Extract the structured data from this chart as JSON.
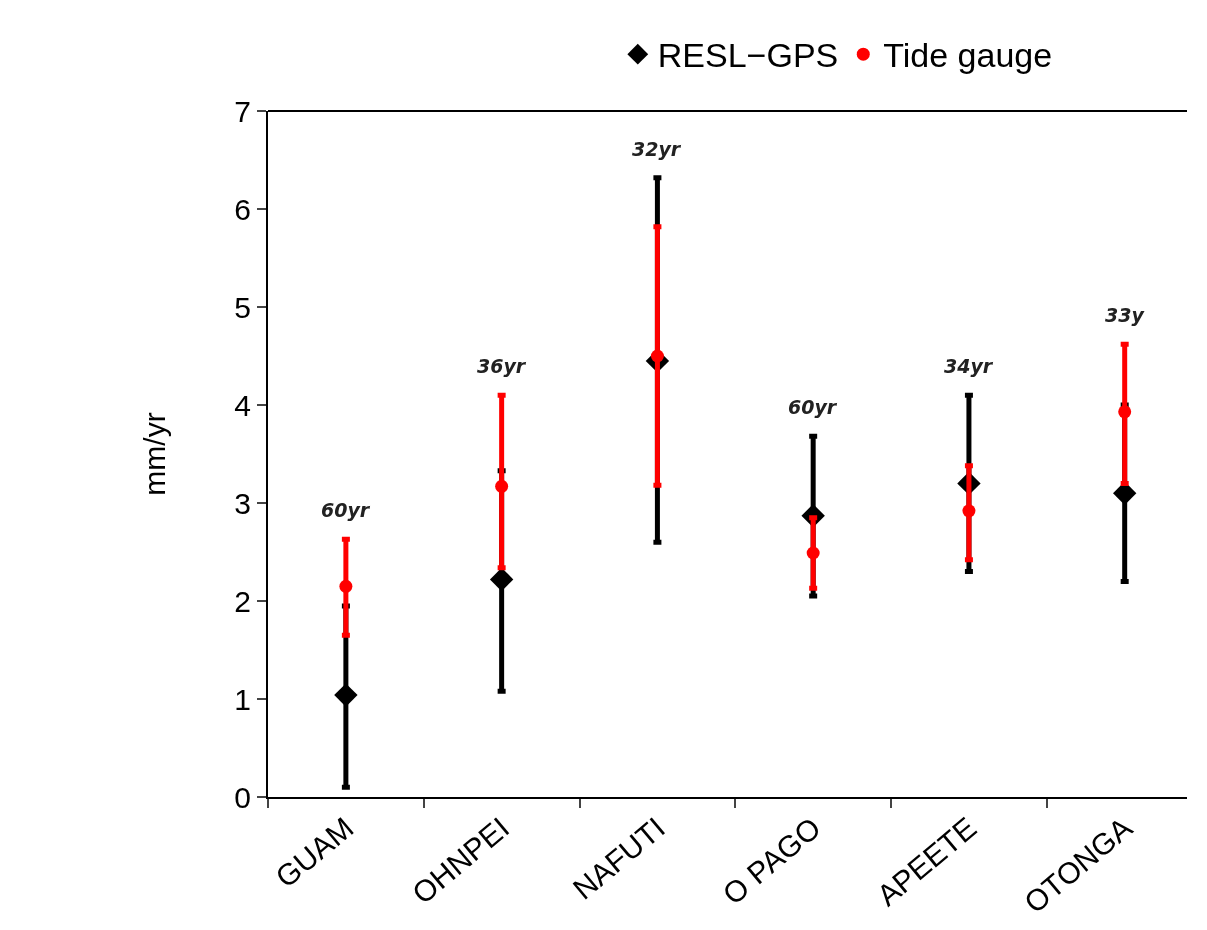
{
  "chart_data": {
    "type": "scatter",
    "ylabel": "mm/yr",
    "categories": [
      "GUAM",
      "OHNPEI",
      "NAFUTI",
      "O PAGO",
      "APEETE",
      "OTONGA"
    ],
    "series": [
      {
        "name": "RESL−GPS",
        "color": "#000000",
        "marker": "diamond",
        "values": [
          1.04,
          2.22,
          4.45,
          2.87,
          3.2,
          3.1
        ],
        "errors": [
          [
            0.1,
            1.95
          ],
          [
            1.08,
            3.33
          ],
          [
            2.6,
            6.32
          ],
          [
            2.05,
            3.68
          ],
          [
            2.3,
            4.1
          ],
          [
            2.2,
            4.0
          ]
        ]
      },
      {
        "name": "Tide gauge",
        "color": "#ff0000",
        "marker": "circle",
        "values": [
          2.15,
          3.17,
          4.5,
          2.49,
          2.92,
          3.93
        ],
        "errors": [
          [
            1.65,
            2.63
          ],
          [
            2.34,
            4.1
          ],
          [
            3.18,
            5.82
          ],
          [
            2.13,
            2.85
          ],
          [
            2.42,
            3.38
          ],
          [
            3.2,
            4.62
          ]
        ]
      }
    ],
    "annotations": [
      "60yr",
      "36yr",
      "32yr",
      "60yr",
      "34yr",
      "33y"
    ],
    "ylim": [
      0,
      7
    ],
    "yticks": [
      0,
      1,
      2,
      3,
      4,
      5,
      6,
      7
    ],
    "grid": false,
    "legend": "top"
  }
}
